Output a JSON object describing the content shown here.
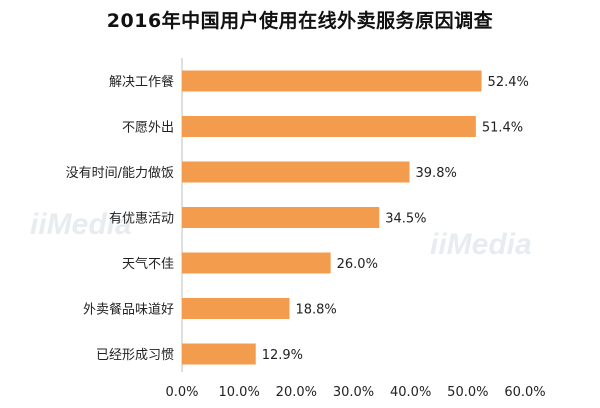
{
  "chart_data": {
    "type": "bar",
    "orientation": "horizontal",
    "title": "2016年中国用户使用在线外卖服务原因调查",
    "categories": [
      "解决工作餐",
      "不愿外出",
      "没有时间/能力做饭",
      "有优惠活动",
      "天气不佳",
      "外卖餐品味道好",
      "已经形成习惯"
    ],
    "values": [
      52.4,
      51.4,
      39.8,
      34.5,
      26.0,
      18.8,
      12.9
    ],
    "value_labels": [
      "52.4%",
      "51.4%",
      "39.8%",
      "34.5%",
      "26.0%",
      "18.8%",
      "12.9%"
    ],
    "xticks": [
      "0.0%",
      "10.0%",
      "20.0%",
      "30.0%",
      "40.0%",
      "50.0%",
      "60.0%"
    ],
    "xlim": [
      0,
      60
    ],
    "bar_color": "#f39c4d",
    "grid": false,
    "legend": "none"
  },
  "watermarks": [
    "iiMedia",
    "iiMedia"
  ]
}
